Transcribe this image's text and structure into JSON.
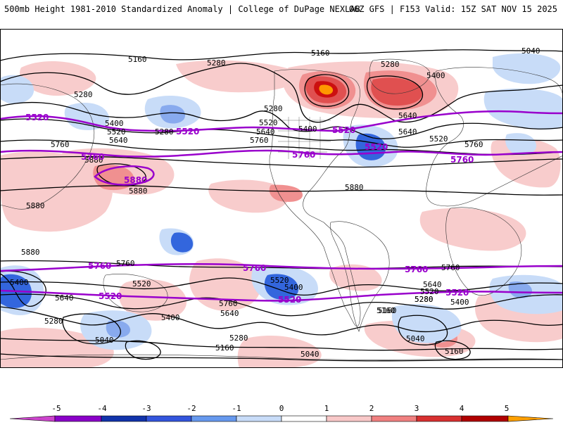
{
  "header": {
    "title_left": "500mb Height 1981-2010 Standardized Anomaly | College of DuPage NEXLAB",
    "title_right": "06Z GFS | F153 Valid: 15Z SAT NOV 15 2025"
  },
  "contour_labels": [
    {
      "text": "5160"
    },
    {
      "text": "5280"
    },
    {
      "text": "5160"
    },
    {
      "text": "5040"
    },
    {
      "text": "5280"
    },
    {
      "text": "5400"
    },
    {
      "text": "5280"
    },
    {
      "text": "5400"
    },
    {
      "text": "5520"
    },
    {
      "text": "5640"
    },
    {
      "text": "5280"
    },
    {
      "text": "5520"
    },
    {
      "text": "5640"
    },
    {
      "text": "5400"
    },
    {
      "text": "5280"
    },
    {
      "text": "5640"
    },
    {
      "text": "5520"
    },
    {
      "text": "5760"
    },
    {
      "text": "5640"
    },
    {
      "text": "5760"
    },
    {
      "text": "5880"
    },
    {
      "text": "5760"
    },
    {
      "text": "5880"
    },
    {
      "text": "5880"
    },
    {
      "text": "5880"
    },
    {
      "text": "5880"
    },
    {
      "text": "5760"
    },
    {
      "text": "5520"
    },
    {
      "text": "5400"
    },
    {
      "text": "5640"
    },
    {
      "text": "5640"
    },
    {
      "text": "5760"
    },
    {
      "text": "5400"
    },
    {
      "text": "5280"
    },
    {
      "text": "5040"
    },
    {
      "text": "5280"
    },
    {
      "text": "5160"
    },
    {
      "text": "5160"
    },
    {
      "text": "5040"
    },
    {
      "text": "5400"
    },
    {
      "text": "5520"
    },
    {
      "text": "5520"
    },
    {
      "text": "5160"
    },
    {
      "text": "5280"
    },
    {
      "text": "5040"
    },
    {
      "text": "5160"
    },
    {
      "text": "5640"
    },
    {
      "text": "5760"
    },
    {
      "text": "5400"
    },
    {
      "text": "5280"
    },
    {
      "text": "5160"
    }
  ],
  "purple_labels": [
    {
      "text": "5520"
    },
    {
      "text": "5520"
    },
    {
      "text": "5520"
    },
    {
      "text": "5520"
    },
    {
      "text": "5760"
    },
    {
      "text": "5760"
    },
    {
      "text": "5760"
    },
    {
      "text": "5880"
    },
    {
      "text": "5760"
    },
    {
      "text": "5760"
    },
    {
      "text": "5760"
    },
    {
      "text": "5520"
    },
    {
      "text": "5520"
    },
    {
      "text": "5520"
    }
  ],
  "colorbar": {
    "tick_labels": [
      "-5",
      "-4",
      "-3",
      "-2",
      "-1",
      "0",
      "1",
      "2",
      "3",
      "4",
      "5"
    ],
    "colors": [
      "#cc44cc",
      "#8a00c8",
      "#1133aa",
      "#3355dd",
      "#6699ee",
      "#c8dcf8",
      "#ffffff",
      "#f8c8c8",
      "#f08080",
      "#d83030",
      "#b00000",
      "#ffa000"
    ]
  },
  "colors": {
    "positive_light": "#f8cccc",
    "positive_mid": "#f09090",
    "positive_strong": "#e05050",
    "positive_max": "#cc1010",
    "positive_extreme": "#ff9900",
    "negative_light": "#c8dcf8",
    "negative_mid": "#88aaee",
    "negative_strong": "#3366dd",
    "purple_contour": "#9900cc"
  }
}
